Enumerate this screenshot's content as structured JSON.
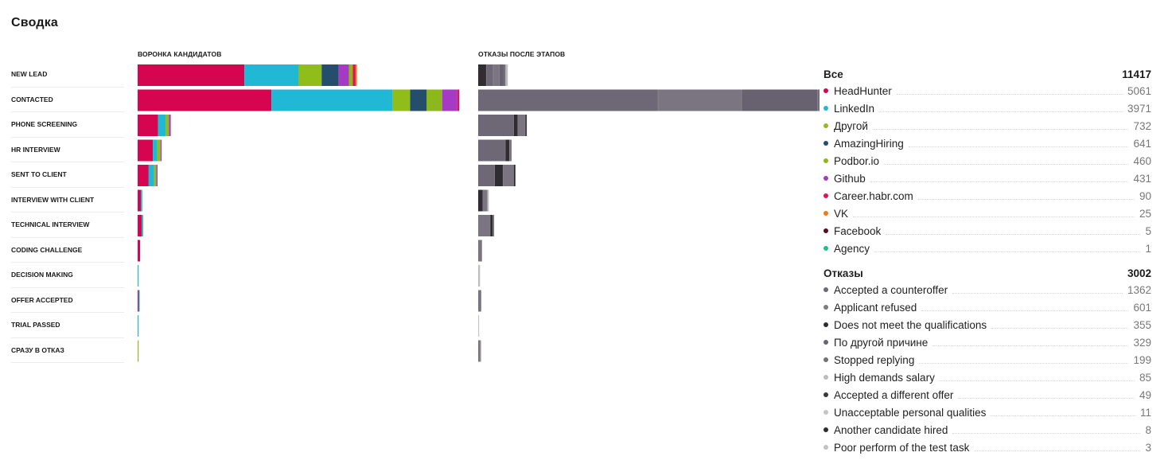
{
  "title": "Сводка",
  "funnel_header": "ВОРОНКА КАНДИДАТОВ",
  "reject_header": "ОТКАЗЫ ПОСЛЕ ЭТАПОВ",
  "stages": [
    "NEW LEAD",
    "CONTACTED",
    "PHONE SCREENING",
    "HR INTERVIEW",
    "SENT TO CLIENT",
    "INTERVIEW WITH CLIENT",
    "TECHNICAL INTERVIEW",
    "CODING CHALLENGE",
    "DECISION MAKING",
    "OFFER ACCEPTED",
    "TRIAL PASSED",
    "СРАЗУ В ОТКАЗ"
  ],
  "sources": {
    "header": {
      "label": "Все",
      "total": "11417"
    },
    "items": [
      {
        "label": "HeadHunter",
        "value": "5061",
        "color": "#d6054f"
      },
      {
        "label": "LinkedIn",
        "value": "3971",
        "color": "#20b8d4"
      },
      {
        "label": "Другой",
        "value": "732",
        "color": "#90bd1a"
      },
      {
        "label": "AmazingHiring",
        "value": "641",
        "color": "#244e6b"
      },
      {
        "label": "Podbor.io",
        "value": "460",
        "color": "#8cb81b"
      },
      {
        "label": "Github",
        "value": "431",
        "color": "#a53ac5"
      },
      {
        "label": "Career.habr.com",
        "value": "90",
        "color": "#e0105a"
      },
      {
        "label": "VK",
        "value": "25",
        "color": "#ef7a16"
      },
      {
        "label": "Facebook",
        "value": "5",
        "color": "#5c0b1e"
      },
      {
        "label": "Agency",
        "value": "1",
        "color": "#19c48a"
      }
    ]
  },
  "rejections": {
    "header": {
      "label": "Отказы",
      "total": "3002"
    },
    "items": [
      {
        "label": "Accepted a counteroffer",
        "value": "1362",
        "color": "#6f6875"
      },
      {
        "label": "Applicant refused",
        "value": "601",
        "color": "#7d7a80"
      },
      {
        "label": "Does not meet the qualifications",
        "value": "355",
        "color": "#2f2d31"
      },
      {
        "label": "По другой причине",
        "value": "329",
        "color": "#6a6470"
      },
      {
        "label": "Stopped replying",
        "value": "199",
        "color": "#746f79"
      },
      {
        "label": "High demands salary",
        "value": "85",
        "color": "#bdbdbd"
      },
      {
        "label": "Accepted a different offer",
        "value": "49",
        "color": "#3a383c"
      },
      {
        "label": "Unacceptable personal qualities",
        "value": "11",
        "color": "#c6c6c6"
      },
      {
        "label": "Another candidate hired",
        "value": "8",
        "color": "#2c2b2e"
      },
      {
        "label": "Poor perform of the test task",
        "value": "3",
        "color": "#c2c2c2"
      }
    ]
  },
  "chart_data": [
    {
      "type": "bar",
      "orientation": "horizontal",
      "stacked": true,
      "title": "ВОРОНКА КАНДИДАТОВ",
      "categories": [
        "NEW LEAD",
        "CONTACTED",
        "PHONE SCREENING",
        "HR INTERVIEW",
        "SENT TO CLIENT",
        "INTERVIEW WITH CLIENT",
        "TECHNICAL INTERVIEW",
        "CODING CHALLENGE",
        "DECISION MAKING",
        "OFFER ACCEPTED",
        "TRIAL PASSED",
        "СРАЗУ В ОТКАЗ"
      ],
      "segments": [
        [
          {
            "name": "HeadHunter",
            "value": 1935
          },
          {
            "name": "LinkedIn",
            "value": 985
          },
          {
            "name": "Другой",
            "value": 415
          },
          {
            "name": "AmazingHiring",
            "value": 310
          },
          {
            "name": "Github",
            "value": 185
          },
          {
            "name": "Podbor.io",
            "value": 70
          },
          {
            "name": "Career.habr.com",
            "value": 50
          },
          {
            "name": "VK",
            "value": 25
          }
        ],
        [
          {
            "name": "HeadHunter",
            "value": 2425
          },
          {
            "name": "LinkedIn",
            "value": 2200
          },
          {
            "name": "Другой",
            "value": 315
          },
          {
            "name": "AmazingHiring",
            "value": 300
          },
          {
            "name": "Podbor.io",
            "value": 280
          },
          {
            "name": "Github",
            "value": 275
          },
          {
            "name": "Career.habr.com",
            "value": 35
          }
        ],
        [
          {
            "name": "HeadHunter",
            "value": 370
          },
          {
            "name": "LinkedIn",
            "value": 140
          },
          {
            "name": "Другой",
            "value": 60
          },
          {
            "name": "Github",
            "value": 30
          }
        ],
        [
          {
            "name": "HeadHunter",
            "value": 275
          },
          {
            "name": "LinkedIn",
            "value": 80
          },
          {
            "name": "Другой",
            "value": 60
          },
          {
            "name": "Github",
            "value": 20
          }
        ],
        [
          {
            "name": "HeadHunter",
            "value": 200
          },
          {
            "name": "LinkedIn",
            "value": 100
          },
          {
            "name": "Другой",
            "value": 40
          },
          {
            "name": "Github",
            "value": 20
          }
        ],
        [
          {
            "name": "HeadHunter",
            "value": 60
          },
          {
            "name": "LinkedIn",
            "value": 25
          }
        ],
        [
          {
            "name": "HeadHunter",
            "value": 75
          },
          {
            "name": "LinkedIn",
            "value": 25
          }
        ],
        [
          {
            "name": "HeadHunter",
            "value": 45
          }
        ],
        [
          {
            "name": "LinkedIn",
            "value": 15
          }
        ],
        [
          {
            "name": "HeadHunter",
            "value": 20
          },
          {
            "name": "LinkedIn",
            "value": 10
          }
        ],
        [
          {
            "name": "LinkedIn",
            "value": 12
          }
        ],
        [
          {
            "name": "Другой",
            "value": 5
          }
        ]
      ],
      "xlim": [
        0,
        6000
      ]
    },
    {
      "type": "bar",
      "orientation": "horizontal",
      "stacked": true,
      "title": "ОТКАЗЫ ПОСЛЕ ЭТАПОВ",
      "categories": [
        "NEW LEAD",
        "CONTACTED",
        "PHONE SCREENING",
        "HR INTERVIEW",
        "SENT TO CLIENT",
        "INTERVIEW WITH CLIENT",
        "TECHNICAL INTERVIEW",
        "CODING CHALLENGE",
        "DECISION MAKING",
        "OFFER ACCEPTED",
        "TRIAL PASSED",
        "СРАЗУ В ОТКАЗ"
      ],
      "segments": [
        [
          {
            "name": "Does not meet the qualifications",
            "value": 55
          },
          {
            "name": "Accepted a counteroffer",
            "value": 45
          },
          {
            "name": "Applicant refused",
            "value": 40
          },
          {
            "name": "По другой причине",
            "value": 25
          },
          {
            "name": "Stopped replying",
            "value": 15
          },
          {
            "name": "High demands salary",
            "value": 15
          }
        ],
        [
          {
            "name": "Accepted a counteroffer",
            "value": 1185
          },
          {
            "name": "Applicant refused",
            "value": 550
          },
          {
            "name": "По другой причине",
            "value": 500
          },
          {
            "name": "Stopped replying",
            "value": 430
          },
          {
            "name": "Does not meet the qualifications",
            "value": 140
          },
          {
            "name": "High demands salary",
            "value": 45
          },
          {
            "name": "Accepted a different offer",
            "value": 15
          },
          {
            "name": "Unacceptable personal qualities",
            "value": 20
          }
        ],
        [
          {
            "name": "Accepted a counteroffer",
            "value": 235
          },
          {
            "name": "Does not meet the qualifications",
            "value": 25
          },
          {
            "name": "Applicant refused",
            "value": 50
          },
          {
            "name": "Accepted a different offer",
            "value": 10
          }
        ],
        [
          {
            "name": "Accepted a counteroffer",
            "value": 180
          },
          {
            "name": "Does not meet the qualifications",
            "value": 25
          },
          {
            "name": "Applicant refused",
            "value": 15
          }
        ],
        [
          {
            "name": "Accepted a counteroffer",
            "value": 110
          },
          {
            "name": "Does not meet the qualifications",
            "value": 55
          },
          {
            "name": "Applicant refused",
            "value": 70
          },
          {
            "name": "Another candidate hired",
            "value": 10
          }
        ],
        [
          {
            "name": "Does not meet the qualifications",
            "value": 30
          },
          {
            "name": "Applicant refused",
            "value": 30
          },
          {
            "name": "High demands salary",
            "value": 10
          }
        ],
        [
          {
            "name": "Applicant refused",
            "value": 80
          },
          {
            "name": "Does not meet the qualifications",
            "value": 15
          },
          {
            "name": "Stopped replying",
            "value": 10
          }
        ],
        [
          {
            "name": "Applicant refused",
            "value": 25
          }
        ],
        [
          {
            "name": "High demands salary",
            "value": 12
          }
        ],
        [
          {
            "name": "Applicant refused",
            "value": 20
          }
        ],
        [
          {
            "name": "Unacceptable personal qualities",
            "value": 3
          }
        ],
        [
          {
            "name": "Applicant refused",
            "value": 15
          },
          {
            "name": "Poor perform of the test task",
            "value": 5
          }
        ]
      ],
      "xlim": [
        0,
        2200
      ]
    }
  ]
}
